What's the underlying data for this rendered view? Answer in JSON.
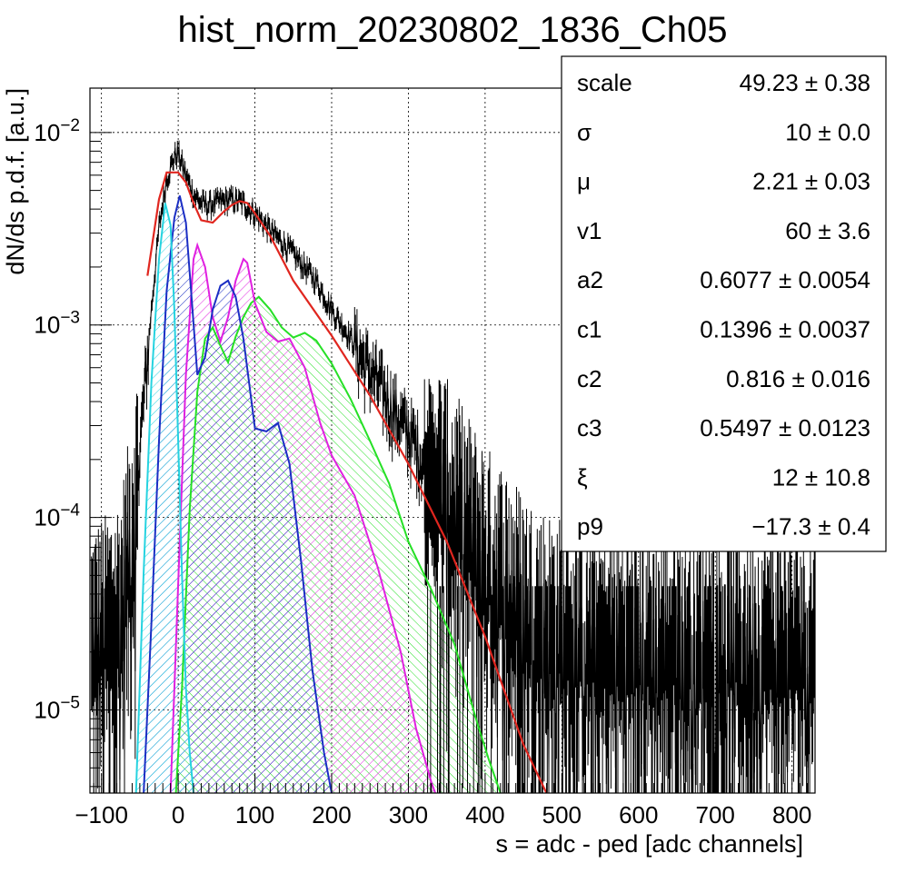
{
  "chart_data": {
    "type": "line",
    "title": "hist_norm_20230802_1836_Ch05",
    "xlabel": "s = adc - ped [adc channels]",
    "ylabel": "dN/ds p.d.f. [a.u.]",
    "xlim": [
      -115,
      830
    ],
    "ylim": [
      3.7e-06,
      0.017
    ],
    "y_scale": "log",
    "grid": true,
    "x_ticks": [
      -100,
      0,
      100,
      200,
      300,
      400,
      500,
      600,
      700,
      800
    ],
    "x_tick_labels": [
      "−100",
      "0",
      "100",
      "200",
      "300",
      "400",
      "500",
      "600",
      "700",
      "800"
    ],
    "y_ticks": [
      {
        "value": 0.01,
        "base": "10",
        "exp": "−2"
      },
      {
        "value": 0.001,
        "base": "10",
        "exp": "−3"
      },
      {
        "value": 0.0001,
        "base": "10",
        "exp": "−4"
      },
      {
        "value": 1e-05,
        "base": "10",
        "exp": "−5"
      }
    ],
    "stats_box": {
      "position": "top-right",
      "rows": [
        {
          "name": "scale",
          "value": "49.23 ± 0.38"
        },
        {
          "name": "σ",
          "value": "10 ± 0.0"
        },
        {
          "name": "μ",
          "value": "2.21 ± 0.03"
        },
        {
          "name": "v1",
          "value": "60 ± 3.6"
        },
        {
          "name": "a2",
          "value": "0.6077 ± 0.0054"
        },
        {
          "name": "c1",
          "value": "0.1396 ± 0.0037"
        },
        {
          "name": "c2",
          "value": "0.816 ± 0.016"
        },
        {
          "name": "c3",
          "value": "0.5497 ± 0.0123"
        },
        {
          "name": "ξ",
          "value": "12 ± 10.8"
        },
        {
          "name": "p9",
          "value": "−17.3 ± 0.4"
        }
      ]
    },
    "series": [
      {
        "key": "total_fit",
        "color": "#e0261f",
        "filled": false,
        "x": [
          -40,
          -25,
          -15,
          0,
          10,
          20,
          30,
          45,
          60,
          70,
          80,
          90,
          100,
          120,
          150,
          200,
          250,
          300,
          350,
          400,
          450,
          480
        ],
        "y": [
          0.0018,
          0.0045,
          0.0062,
          0.0062,
          0.0055,
          0.0043,
          0.0035,
          0.0034,
          0.0039,
          0.0042,
          0.0044,
          0.0043,
          0.0038,
          0.0029,
          0.0017,
          0.00088,
          0.00043,
          0.00019,
          7.5e-05,
          2.4e-05,
          6.6e-06,
          3.7e-06
        ]
      },
      {
        "key": "peak_0",
        "color": "#26d3e0",
        "filled": true,
        "x": [
          -55,
          -45,
          -35,
          -25,
          -17,
          -10,
          -5,
          0,
          5,
          10,
          15,
          20
        ],
        "y": [
          3.7e-06,
          5.2e-05,
          0.0005,
          0.0022,
          0.0043,
          0.0033,
          0.0012,
          0.00025,
          5e-05,
          1.3e-05,
          6e-06,
          3.7e-06
        ]
      },
      {
        "key": "peak_1",
        "color": "#1b2ec4",
        "filled": true,
        "x": [
          -45,
          -35,
          -25,
          -15,
          -5,
          2,
          10,
          18,
          25,
          35,
          45,
          55,
          65,
          75,
          85,
          100,
          115,
          130,
          145,
          160,
          175,
          190,
          200
        ],
        "y": [
          3.7e-06,
          2.8e-05,
          0.00025,
          0.0015,
          0.0036,
          0.0047,
          0.0034,
          0.0013,
          0.00055,
          0.00068,
          0.0012,
          0.0016,
          0.0017,
          0.0014,
          0.00085,
          0.00029,
          0.00028,
          0.00031,
          0.00019,
          6e-05,
          1.6e-05,
          6e-06,
          3.7e-06
        ]
      },
      {
        "key": "peak_2",
        "color": "#e020e0",
        "filled": true,
        "x": [
          -10,
          0,
          10,
          20,
          25,
          35,
          45,
          55,
          65,
          75,
          85,
          90,
          100,
          115,
          130,
          145,
          165,
          185,
          200,
          230,
          260,
          290,
          310,
          330,
          335
        ],
        "y": [
          3.7e-06,
          4.5e-05,
          0.00055,
          0.0022,
          0.0026,
          0.002,
          0.0011,
          0.00082,
          0.0011,
          0.0017,
          0.0022,
          0.0021,
          0.0013,
          0.00092,
          0.00082,
          0.00085,
          0.0006,
          0.00031,
          0.00021,
          0.00013,
          5.5e-05,
          2e-05,
          8e-06,
          4.2e-06,
          3.7e-06
        ]
      },
      {
        "key": "peak_3",
        "color": "#26e026",
        "filled": true,
        "x": [
          -3,
          5,
          15,
          25,
          35,
          45,
          55,
          65,
          75,
          85,
          95,
          105,
          120,
          135,
          150,
          165,
          180,
          200,
          225,
          250,
          275,
          300,
          330,
          360,
          390,
          405,
          420
        ],
        "y": [
          3.7e-06,
          1.3e-05,
          0.00011,
          0.00045,
          0.00085,
          0.00097,
          0.00078,
          0.00064,
          0.00087,
          0.0011,
          0.0013,
          0.0014,
          0.0012,
          0.00097,
          0.00086,
          0.00091,
          0.00083,
          0.00063,
          0.00041,
          0.00025,
          0.00015,
          7.5e-05,
          4.2e-05,
          2.2e-05,
          8.5e-06,
          5.5e-06,
          3.7e-06
        ]
      }
    ],
    "data_envelope": {
      "key": "data_histogram",
      "color": "#000000",
      "x": [
        -115,
        -90,
        -75,
        -65,
        -55,
        -45,
        -35,
        -25,
        -15,
        -5,
        0,
        10,
        20,
        30,
        40,
        55,
        70,
        85,
        100,
        120,
        140,
        160,
        180,
        200,
        220,
        240,
        260,
        280,
        300,
        330,
        360,
        400,
        430,
        460,
        480,
        520,
        560,
        600,
        650,
        700,
        750,
        800,
        830
      ],
      "y": [
        2.2e-05,
        2.6e-05,
        3.2e-05,
        6e-05,
        0.00015,
        0.0004,
        0.0012,
        0.0032,
        0.0058,
        0.0075,
        0.0078,
        0.006,
        0.0048,
        0.0043,
        0.0042,
        0.0044,
        0.0045,
        0.0043,
        0.0038,
        0.0031,
        0.0026,
        0.0021,
        0.0017,
        0.0012,
        0.00092,
        0.00068,
        0.00051,
        0.00037,
        0.00028,
        0.00017,
        0.00011,
        5.8e-05,
        4.2e-05,
        2.9e-05,
        2.6e-05,
        2.2e-05,
        2.1e-05,
        2.1e-05,
        2.1e-05,
        2.1e-05,
        2.1e-05,
        2.1e-05,
        2.1e-05
      ]
    }
  }
}
